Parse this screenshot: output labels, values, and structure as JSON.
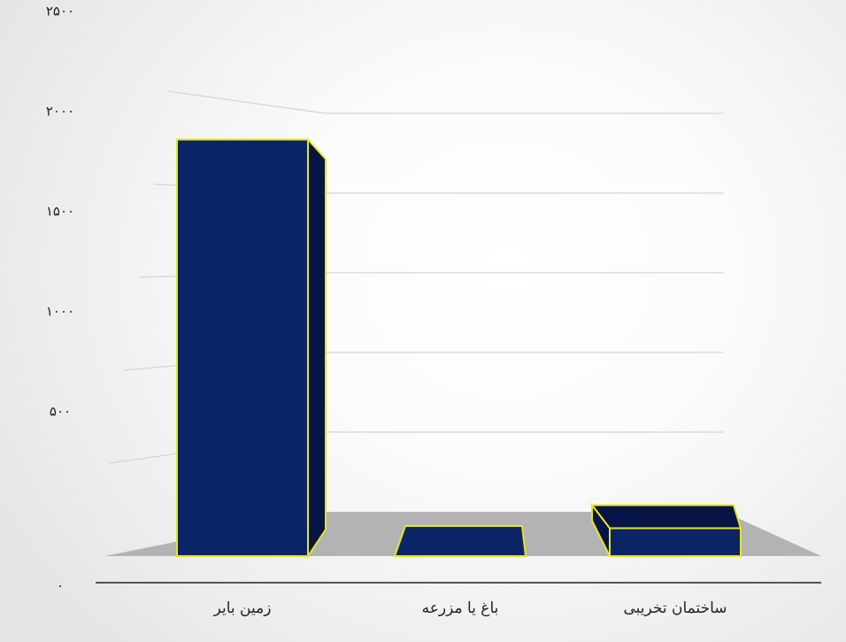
{
  "chart_data": {
    "type": "bar",
    "style": "3d-perspective",
    "categories": [
      "زمین بایر",
      "باغ یا مزرعه",
      "ساختمان تخریبی"
    ],
    "values": [
      2240,
      0,
      150
    ],
    "ylim": [
      0,
      2500
    ],
    "yticks": [
      0,
      500,
      1000,
      1500,
      2000,
      2500
    ],
    "ytick_labels": [
      "۰",
      "۵۰۰",
      "۱۰۰۰",
      "۱۵۰۰",
      "۲۰۰۰",
      "۲۵۰۰"
    ],
    "grid": true,
    "legend": "none",
    "title": "",
    "xlabel": "",
    "ylabel": ""
  },
  "colors": {
    "bar_fill": "#0a2466",
    "bar_side": "#061545",
    "bar_outline": "#e6e61a",
    "floor": "#b3b3b3",
    "gridline": "#d6d6d6",
    "baseline": "#555555"
  }
}
